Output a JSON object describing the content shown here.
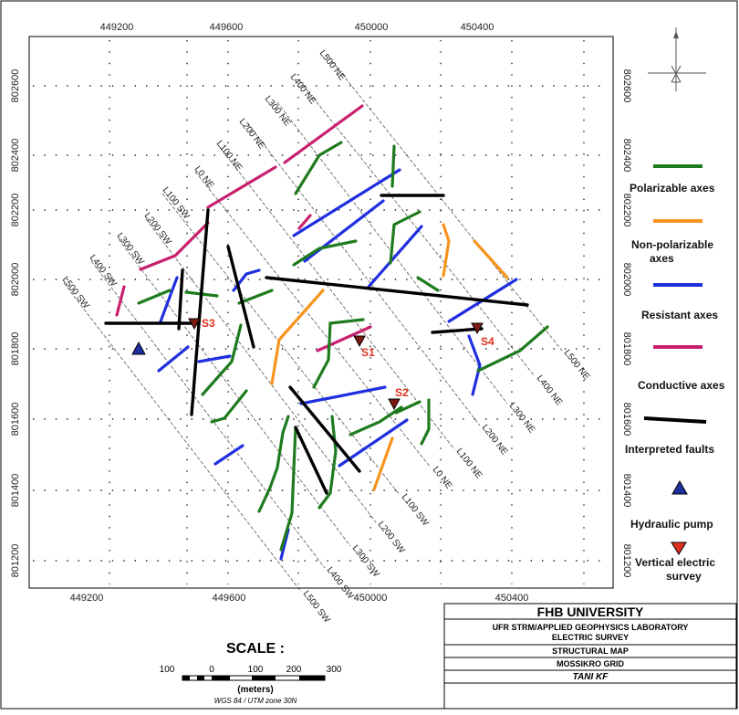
{
  "map": {
    "x_ticks": [
      "449200",
      "449600",
      "450000",
      "450400"
    ],
    "y_ticks": [
      "802600",
      "802400",
      "802200",
      "802000",
      "801800",
      "801600",
      "801400",
      "801200"
    ],
    "profile_labels_ne": [
      "L0 NE",
      "L100 NE",
      "L200 NE",
      "L300 NE",
      "L400 NE",
      "L500 NE"
    ],
    "profile_labels_sw": [
      "L100 SW",
      "L200 SW",
      "L300 SW",
      "L400 SW",
      "L500 SW"
    ],
    "profile_labels_ne_se": [
      "L0 NE",
      "L100 NE",
      "L200 NE",
      "L300 NE",
      "L400 NE",
      "L500 NE"
    ],
    "profile_labels_sw_se": [
      "L100 SW",
      "L200 SW",
      "L300 SW",
      "L400 SW",
      "L500 SW"
    ],
    "stations": [
      "S1",
      "S2",
      "S3",
      "S4"
    ]
  },
  "legend": {
    "polarizable": {
      "label": "Polarizable axes",
      "color": "#1e7b1e"
    },
    "non_polarizable": {
      "label_1": "Non-polarizable",
      "label_2": "axes",
      "color": "#f7941d"
    },
    "resistant": {
      "label": "Resistant axes",
      "color": "#1f2fe0"
    },
    "conductive": {
      "label": "Conductive axes",
      "color": "#c8206e"
    },
    "faults": {
      "label": "Interpreted faults",
      "color": "#000000"
    },
    "pump": {
      "label": "Hydraulic pump",
      "color": "#1f2e9e"
    },
    "ves": {
      "label_1": "Vertical electric",
      "label_2": "survey",
      "color": "#e0301e"
    }
  },
  "scale": {
    "title": "SCALE :",
    "ticks": [
      "100",
      "0",
      "100",
      "200",
      "300"
    ],
    "unit": "(meters)",
    "datum": "WGS 84 / UTM zone 30N"
  },
  "title_block": {
    "university": "FHB UNIVERSITY",
    "lab_1": "UFR STRM/APPLIED GEOPHYSICS LABORATORY",
    "lab_2": "ELECTRIC SURVEY",
    "map_title": "STRUCTURAL MAP",
    "grid": "MOSSIKRO GRID",
    "author": "TANI KF"
  }
}
